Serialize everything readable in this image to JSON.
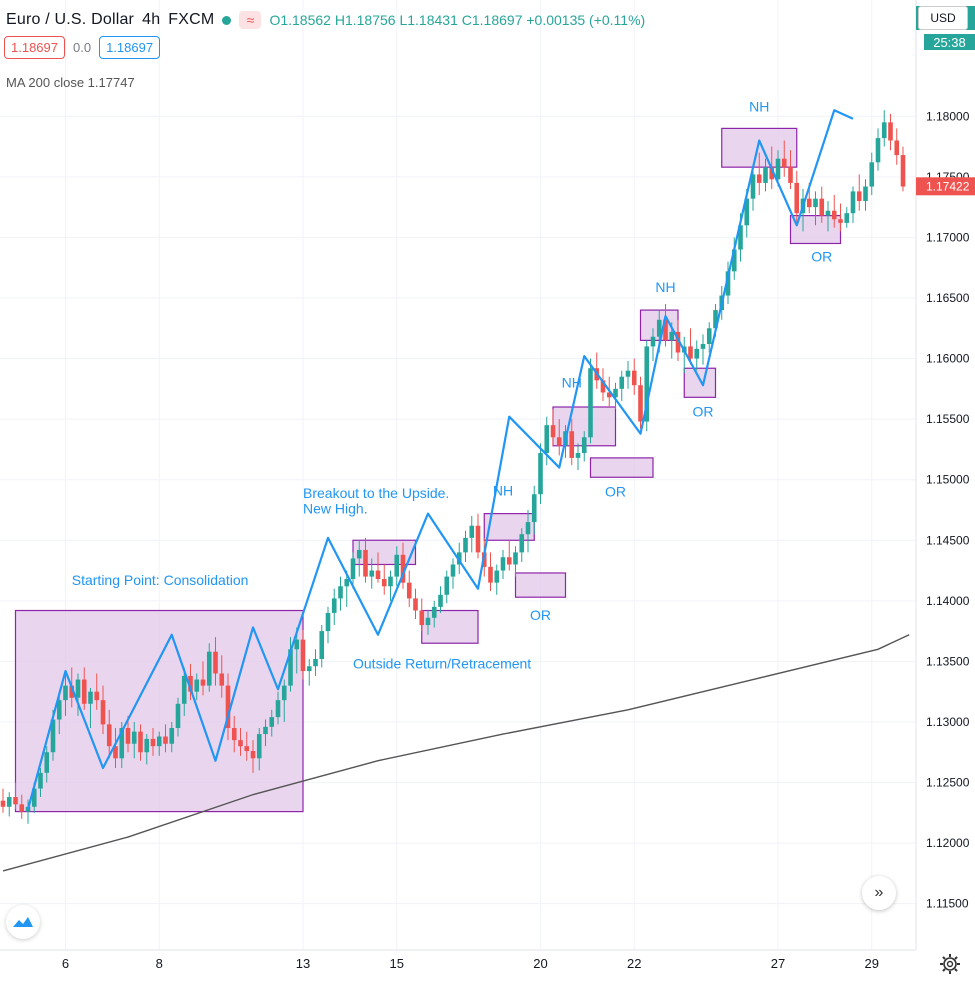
{
  "header": {
    "symbol": "Euro / U.S. Dollar",
    "interval": "4h",
    "exchange": "FXCM",
    "ohlc": {
      "open_label": "O",
      "open": "1.18562",
      "high_label": "H",
      "high": "1.18756",
      "low_label": "L",
      "low": "1.18431",
      "close_label": "C",
      "close": "1.18697",
      "change": "+0.00135 (+0.11%)"
    }
  },
  "trade": {
    "sell": "1.18697",
    "spread": "0.0",
    "buy": "1.18697"
  },
  "indicator": {
    "label": "MA 200 close",
    "value": "1.17747"
  },
  "price_axis": {
    "currency": "USD",
    "timer": "25:38",
    "current_price": "1.17422"
  },
  "icons": [
    "wave-icon",
    "fast-forward-icon",
    "gear-icon",
    "tradingview-logo-icon"
  ],
  "colors": {
    "up": "#26a69a",
    "down": "#ef5350",
    "zigzag": "#2196f3",
    "box_fill": "#e3c7ea",
    "box_border": "#8e24aa",
    "annotation": "#2196f3",
    "ma": "#555555"
  },
  "chart_data": {
    "type": "candlestick",
    "y_ticks": [
      "1.18000",
      "1.17500",
      "1.17000",
      "1.16500",
      "1.16000",
      "1.15500",
      "1.15000",
      "1.14500",
      "1.14000",
      "1.13500",
      "1.13000",
      "1.12500",
      "1.12000",
      "1.11500"
    ],
    "y_range": [
      1.112,
      1.1825
    ],
    "x_ticks": [
      {
        "label": "6",
        "idx": 10
      },
      {
        "label": "8",
        "idx": 25
      },
      {
        "label": "13",
        "idx": 48
      },
      {
        "label": "15",
        "idx": 63
      },
      {
        "label": "20",
        "idx": 86
      },
      {
        "label": "22",
        "idx": 101
      },
      {
        "label": "27",
        "idx": 124
      },
      {
        "label": "29",
        "idx": 139
      }
    ],
    "bars_count": 149,
    "candles": [
      [
        0,
        1.1235,
        1.1245,
        1.1225,
        1.123
      ],
      [
        1,
        1.123,
        1.1242,
        1.1222,
        1.1238
      ],
      [
        2,
        1.1238,
        1.125,
        1.1228,
        1.1232
      ],
      [
        3,
        1.1232,
        1.124,
        1.122,
        1.1226
      ],
      [
        4,
        1.1226,
        1.1236,
        1.1216,
        1.123
      ],
      [
        5,
        1.123,
        1.125,
        1.1225,
        1.1245
      ],
      [
        6,
        1.1245,
        1.1262,
        1.1238,
        1.1258
      ],
      [
        7,
        1.1258,
        1.128,
        1.125,
        1.1275
      ],
      [
        8,
        1.1275,
        1.131,
        1.1268,
        1.1302
      ],
      [
        9,
        1.1302,
        1.1325,
        1.129,
        1.1318
      ],
      [
        10,
        1.1318,
        1.134,
        1.1305,
        1.133
      ],
      [
        11,
        1.133,
        1.1345,
        1.1312,
        1.132
      ],
      [
        12,
        1.132,
        1.134,
        1.1305,
        1.1335
      ],
      [
        13,
        1.1335,
        1.1345,
        1.131,
        1.1315
      ],
      [
        14,
        1.1315,
        1.1328,
        1.1295,
        1.1325
      ],
      [
        15,
        1.1325,
        1.134,
        1.131,
        1.1318
      ],
      [
        16,
        1.1318,
        1.133,
        1.129,
        1.1298
      ],
      [
        17,
        1.1298,
        1.131,
        1.127,
        1.128
      ],
      [
        18,
        1.128,
        1.1295,
        1.1262,
        1.127
      ],
      [
        19,
        1.127,
        1.13,
        1.1262,
        1.1295
      ],
      [
        20,
        1.1295,
        1.1305,
        1.1275,
        1.1282
      ],
      [
        21,
        1.1282,
        1.13,
        1.127,
        1.1292
      ],
      [
        22,
        1.1292,
        1.1298,
        1.1268,
        1.1275
      ],
      [
        23,
        1.1275,
        1.129,
        1.1265,
        1.1286
      ],
      [
        24,
        1.1286,
        1.1295,
        1.1272,
        1.128
      ],
      [
        25,
        1.128,
        1.1292,
        1.1272,
        1.1288
      ],
      [
        26,
        1.1288,
        1.1298,
        1.1275,
        1.1282
      ],
      [
        27,
        1.1282,
        1.13,
        1.1275,
        1.1295
      ],
      [
        28,
        1.1295,
        1.132,
        1.1288,
        1.1315
      ],
      [
        29,
        1.1315,
        1.1345,
        1.1305,
        1.1338
      ],
      [
        30,
        1.1338,
        1.1348,
        1.1318,
        1.1325
      ],
      [
        31,
        1.1325,
        1.134,
        1.1318,
        1.1335
      ],
      [
        32,
        1.1335,
        1.135,
        1.1322,
        1.133
      ],
      [
        33,
        1.133,
        1.1365,
        1.1325,
        1.1358
      ],
      [
        34,
        1.1358,
        1.137,
        1.133,
        1.134
      ],
      [
        35,
        1.134,
        1.1355,
        1.132,
        1.133
      ],
      [
        36,
        1.133,
        1.134,
        1.1285,
        1.1295
      ],
      [
        37,
        1.1295,
        1.1305,
        1.1275,
        1.1285
      ],
      [
        38,
        1.1285,
        1.1295,
        1.1272,
        1.128
      ],
      [
        39,
        1.128,
        1.1292,
        1.1268,
        1.1276
      ],
      [
        40,
        1.1276,
        1.1285,
        1.1258,
        1.127
      ],
      [
        41,
        1.127,
        1.1295,
        1.126,
        1.129
      ],
      [
        42,
        1.129,
        1.1302,
        1.128,
        1.1296
      ],
      [
        43,
        1.1296,
        1.131,
        1.1288,
        1.1304
      ],
      [
        44,
        1.1304,
        1.1325,
        1.1298,
        1.1318
      ],
      [
        45,
        1.1318,
        1.1335,
        1.13,
        1.133
      ],
      [
        46,
        1.133,
        1.137,
        1.1325,
        1.136
      ],
      [
        47,
        1.136,
        1.1378,
        1.134,
        1.1368
      ],
      [
        48,
        1.1368,
        1.1376,
        1.1335,
        1.1342
      ],
      [
        49,
        1.1342,
        1.1352,
        1.133,
        1.1346
      ],
      [
        50,
        1.1346,
        1.136,
        1.1338,
        1.1352
      ],
      [
        51,
        1.1352,
        1.138,
        1.1345,
        1.1375
      ],
      [
        52,
        1.1375,
        1.1395,
        1.1365,
        1.139
      ],
      [
        53,
        1.139,
        1.141,
        1.138,
        1.1402
      ],
      [
        54,
        1.1402,
        1.142,
        1.1392,
        1.1412
      ],
      [
        55,
        1.1412,
        1.1425,
        1.1395,
        1.1418
      ],
      [
        56,
        1.1418,
        1.144,
        1.141,
        1.1435
      ],
      [
        57,
        1.1435,
        1.145,
        1.142,
        1.1442
      ],
      [
        58,
        1.1442,
        1.1452,
        1.1415,
        1.142
      ],
      [
        59,
        1.142,
        1.1435,
        1.141,
        1.1425
      ],
      [
        60,
        1.1425,
        1.144,
        1.1415,
        1.1418
      ],
      [
        61,
        1.1418,
        1.143,
        1.1405,
        1.1412
      ],
      [
        62,
        1.1412,
        1.1425,
        1.14,
        1.142
      ],
      [
        63,
        1.142,
        1.1445,
        1.1412,
        1.1438
      ],
      [
        64,
        1.1438,
        1.1448,
        1.141,
        1.1415
      ],
      [
        65,
        1.1415,
        1.1425,
        1.1395,
        1.1402
      ],
      [
        66,
        1.1402,
        1.141,
        1.1385,
        1.1392
      ],
      [
        67,
        1.1392,
        1.1402,
        1.1375,
        1.138
      ],
      [
        68,
        1.138,
        1.1392,
        1.1372,
        1.1386
      ],
      [
        69,
        1.1386,
        1.14,
        1.1378,
        1.1395
      ],
      [
        70,
        1.1395,
        1.1412,
        1.139,
        1.1405
      ],
      [
        71,
        1.1405,
        1.1425,
        1.1398,
        1.142
      ],
      [
        72,
        1.142,
        1.1435,
        1.141,
        1.143
      ],
      [
        73,
        1.143,
        1.1448,
        1.1422,
        1.144
      ],
      [
        74,
        1.144,
        1.1458,
        1.1432,
        1.1452
      ],
      [
        75,
        1.1452,
        1.147,
        1.144,
        1.1462
      ],
      [
        76,
        1.1462,
        1.1472,
        1.1435,
        1.144
      ],
      [
        77,
        1.144,
        1.1452,
        1.142,
        1.1428
      ],
      [
        78,
        1.1428,
        1.144,
        1.1408,
        1.1415
      ],
      [
        79,
        1.1415,
        1.143,
        1.1405,
        1.1425
      ],
      [
        80,
        1.1425,
        1.1442,
        1.1418,
        1.1436
      ],
      [
        81,
        1.1436,
        1.145,
        1.1425,
        1.143
      ],
      [
        82,
        1.143,
        1.1445,
        1.142,
        1.144
      ],
      [
        83,
        1.144,
        1.146,
        1.1432,
        1.1455
      ],
      [
        84,
        1.1455,
        1.1475,
        1.144,
        1.1465
      ],
      [
        85,
        1.1465,
        1.1495,
        1.1455,
        1.1488
      ],
      [
        86,
        1.1488,
        1.153,
        1.148,
        1.1522
      ],
      [
        87,
        1.1522,
        1.1552,
        1.1512,
        1.1545
      ],
      [
        88,
        1.1545,
        1.1558,
        1.1528,
        1.1535
      ],
      [
        89,
        1.1535,
        1.155,
        1.152,
        1.1528
      ],
      [
        90,
        1.1528,
        1.1545,
        1.1518,
        1.154
      ],
      [
        91,
        1.154,
        1.155,
        1.1512,
        1.1518
      ],
      [
        92,
        1.1518,
        1.153,
        1.1508,
        1.1522
      ],
      [
        93,
        1.1522,
        1.154,
        1.1515,
        1.1535
      ],
      [
        94,
        1.1535,
        1.16,
        1.153,
        1.1592
      ],
      [
        95,
        1.1592,
        1.1605,
        1.1575,
        1.1582
      ],
      [
        96,
        1.1582,
        1.1592,
        1.1565,
        1.1572
      ],
      [
        97,
        1.1572,
        1.1585,
        1.156,
        1.1568
      ],
      [
        98,
        1.1568,
        1.158,
        1.1558,
        1.1575
      ],
      [
        99,
        1.1575,
        1.159,
        1.1565,
        1.1585
      ],
      [
        100,
        1.1585,
        1.1598,
        1.1575,
        1.159
      ],
      [
        101,
        1.159,
        1.16,
        1.157,
        1.1578
      ],
      [
        102,
        1.1578,
        1.1585,
        1.1542,
        1.1548
      ],
      [
        103,
        1.1548,
        1.1615,
        1.154,
        1.161
      ],
      [
        104,
        1.161,
        1.1625,
        1.1598,
        1.1618
      ],
      [
        105,
        1.1618,
        1.164,
        1.1605,
        1.1632
      ],
      [
        106,
        1.1632,
        1.1645,
        1.161,
        1.1615
      ],
      [
        107,
        1.1615,
        1.163,
        1.16,
        1.1622
      ],
      [
        108,
        1.1622,
        1.1632,
        1.1598,
        1.1605
      ],
      [
        109,
        1.1605,
        1.1618,
        1.1588,
        1.161
      ],
      [
        110,
        1.161,
        1.1625,
        1.1595,
        1.16
      ],
      [
        111,
        1.16,
        1.1615,
        1.159,
        1.1608
      ],
      [
        112,
        1.1608,
        1.162,
        1.1595,
        1.1612
      ],
      [
        113,
        1.1612,
        1.163,
        1.1605,
        1.1625
      ],
      [
        114,
        1.1625,
        1.1645,
        1.1618,
        1.164
      ],
      [
        115,
        1.164,
        1.166,
        1.1632,
        1.1652
      ],
      [
        116,
        1.1652,
        1.168,
        1.1645,
        1.1672
      ],
      [
        117,
        1.1672,
        1.17,
        1.1665,
        1.169
      ],
      [
        118,
        1.169,
        1.172,
        1.168,
        1.171
      ],
      [
        119,
        1.171,
        1.174,
        1.17,
        1.1732
      ],
      [
        120,
        1.1732,
        1.176,
        1.1722,
        1.1752
      ],
      [
        121,
        1.1752,
        1.177,
        1.1735,
        1.1745
      ],
      [
        122,
        1.1745,
        1.1765,
        1.1738,
        1.1758
      ],
      [
        123,
        1.1758,
        1.1775,
        1.174,
        1.1748
      ],
      [
        124,
        1.1748,
        1.1772,
        1.1742,
        1.1765
      ],
      [
        125,
        1.1765,
        1.178,
        1.175,
        1.1758
      ],
      [
        126,
        1.1758,
        1.1772,
        1.174,
        1.1745
      ],
      [
        127,
        1.1745,
        1.1755,
        1.1712,
        1.172
      ],
      [
        128,
        1.172,
        1.174,
        1.1705,
        1.1732
      ],
      [
        129,
        1.1732,
        1.1745,
        1.172,
        1.1725
      ],
      [
        130,
        1.1725,
        1.1738,
        1.171,
        1.1732
      ],
      [
        131,
        1.1732,
        1.1742,
        1.1712,
        1.1718
      ],
      [
        132,
        1.1718,
        1.173,
        1.1705,
        1.1722
      ],
      [
        133,
        1.1722,
        1.1735,
        1.1708,
        1.1715
      ],
      [
        134,
        1.1715,
        1.1728,
        1.1705,
        1.1712
      ],
      [
        135,
        1.1712,
        1.1725,
        1.1708,
        1.172
      ],
      [
        136,
        1.172,
        1.1742,
        1.1712,
        1.1738
      ],
      [
        137,
        1.1738,
        1.1752,
        1.1722,
        1.173
      ],
      [
        138,
        1.173,
        1.1748,
        1.1722,
        1.1742
      ],
      [
        139,
        1.1742,
        1.177,
        1.1735,
        1.1762
      ],
      [
        140,
        1.1762,
        1.179,
        1.1755,
        1.1782
      ],
      [
        141,
        1.1782,
        1.1805,
        1.1775,
        1.1795
      ],
      [
        142,
        1.1795,
        1.1802,
        1.1772,
        1.178
      ],
      [
        143,
        1.178,
        1.179,
        1.176,
        1.1768
      ],
      [
        144,
        1.1768,
        1.1775,
        1.1738,
        1.1742
      ]
    ],
    "ma200": [
      [
        0,
        1.1177
      ],
      [
        20,
        1.1205
      ],
      [
        40,
        1.124
      ],
      [
        60,
        1.1268
      ],
      [
        80,
        1.129
      ],
      [
        100,
        1.131
      ],
      [
        120,
        1.1335
      ],
      [
        140,
        1.136
      ],
      [
        145,
        1.1372
      ]
    ],
    "zigzag": [
      [
        4,
        1.1228
      ],
      [
        10,
        1.1342
      ],
      [
        16,
        1.1262
      ],
      [
        27,
        1.1372
      ],
      [
        34,
        1.1268
      ],
      [
        40,
        1.1378
      ],
      [
        44,
        1.1327
      ],
      [
        52,
        1.1452
      ],
      [
        60,
        1.1372
      ],
      [
        68,
        1.1472
      ],
      [
        76,
        1.141
      ],
      [
        81,
        1.1552
      ],
      [
        89,
        1.151
      ],
      [
        93,
        1.1602
      ],
      [
        102,
        1.1538
      ],
      [
        106,
        1.1635
      ],
      [
        112,
        1.1578
      ],
      [
        121,
        1.178
      ],
      [
        127,
        1.171
      ],
      [
        133,
        1.1805
      ],
      [
        136,
        1.1798
      ]
    ],
    "boxes": [
      {
        "x0": 2,
        "x1": 48,
        "y0": 1.1226,
        "y1": 1.1392
      },
      {
        "x0": 56,
        "x1": 66,
        "y0": 1.143,
        "y1": 1.145
      },
      {
        "x0": 67,
        "x1": 76,
        "y0": 1.1365,
        "y1": 1.1392
      },
      {
        "x0": 77,
        "x1": 85,
        "y0": 1.145,
        "y1": 1.1472
      },
      {
        "x0": 82,
        "x1": 90,
        "y0": 1.1403,
        "y1": 1.1423
      },
      {
        "x0": 88,
        "x1": 98,
        "y0": 1.1528,
        "y1": 1.156
      },
      {
        "x0": 94,
        "x1": 104,
        "y0": 1.1502,
        "y1": 1.1518
      },
      {
        "x0": 102,
        "x1": 108,
        "y0": 1.1615,
        "y1": 1.164
      },
      {
        "x0": 109,
        "x1": 114,
        "y0": 1.1568,
        "y1": 1.1592
      },
      {
        "x0": 115,
        "x1": 127,
        "y0": 1.1758,
        "y1": 1.179
      },
      {
        "x0": 126,
        "x1": 134,
        "y0": 1.1695,
        "y1": 1.1718
      }
    ],
    "annotations": [
      {
        "text": "Starting Point: Consolidation",
        "idx": 11,
        "y": 1.1413
      },
      {
        "text": "Breakout to the Upside.",
        "idx": 48,
        "y": 1.1485
      },
      {
        "text": "New High.",
        "idx": 48,
        "y": 1.1472
      },
      {
        "text": "Outside Return/Retracement",
        "idx": 56,
        "y": 1.1344
      },
      {
        "text": "NH",
        "idx": 80,
        "y": 1.1487
      },
      {
        "text": "OR",
        "idx": 86,
        "y": 1.1384
      },
      {
        "text": "NH",
        "idx": 91,
        "y": 1.1576
      },
      {
        "text": "OR",
        "idx": 98,
        "y": 1.1486
      },
      {
        "text": "NH",
        "idx": 106,
        "y": 1.1655
      },
      {
        "text": "OR",
        "idx": 112,
        "y": 1.1552
      },
      {
        "text": "NH",
        "idx": 121,
        "y": 1.1804
      },
      {
        "text": "OR",
        "idx": 131,
        "y": 1.168
      }
    ]
  }
}
